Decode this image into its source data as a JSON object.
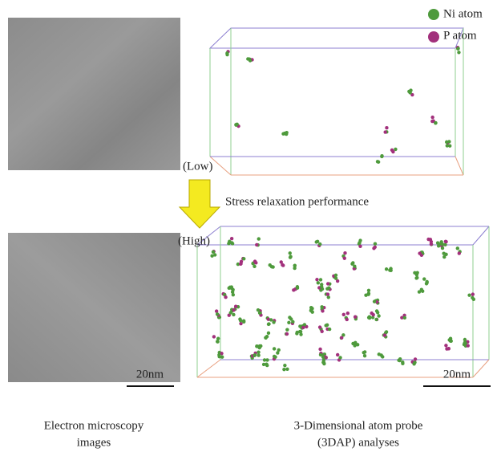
{
  "legend": {
    "items": [
      {
        "label": "Ni atom",
        "color": "#4e9a3c"
      },
      {
        "label": "P atom",
        "color": "#a2307c"
      }
    ]
  },
  "arrow": {
    "top_label": "(Low)",
    "caption": "Stress relaxation performance",
    "bottom_label": "(High)"
  },
  "scale_bars": [
    "20nm",
    "20nm"
  ],
  "captions": [
    {
      "lines": [
        "Electron microscopy",
        "images"
      ]
    },
    {
      "lines": [
        "3-Dimensional atom probe",
        "(3DAP) analyses"
      ]
    }
  ]
}
